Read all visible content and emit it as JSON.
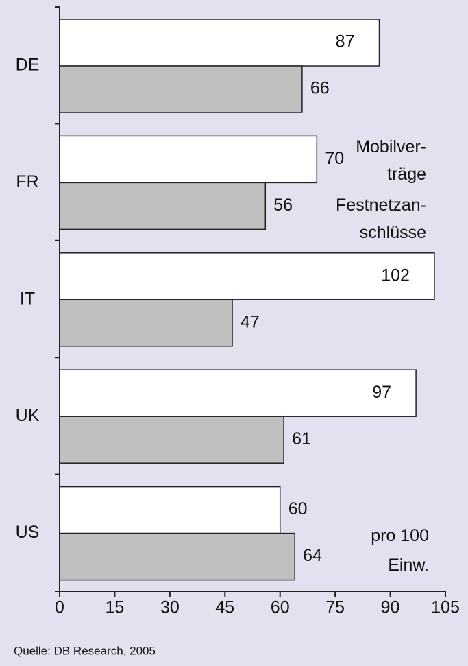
{
  "chart_data": {
    "type": "bar",
    "orientation": "horizontal",
    "categories": [
      "DE",
      "FR",
      "IT",
      "UK",
      "US"
    ],
    "series": [
      {
        "name": "Mobilver-\nträge",
        "color": "#ffffff",
        "values": [
          87,
          70,
          102,
          97,
          60
        ]
      },
      {
        "name": "Festnetzan-\nschlüsse",
        "color": "#c0c0c0",
        "values": [
          66,
          56,
          47,
          61,
          64
        ]
      }
    ],
    "xlim": [
      0,
      105
    ],
    "xticks": [
      0,
      15,
      30,
      45,
      60,
      75,
      90,
      105
    ],
    "annotation": "pro 100\nEinw.",
    "source": "Quelle: DB Research, 2005"
  }
}
